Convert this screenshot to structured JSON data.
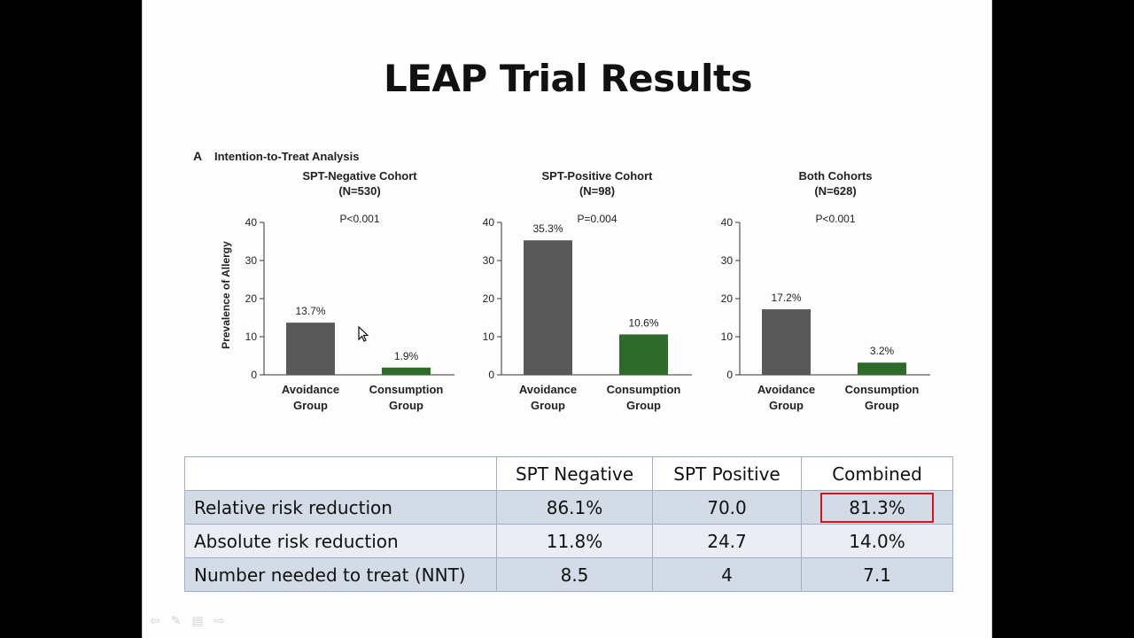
{
  "slide": {
    "title": "LEAP Trial Results"
  },
  "figure": {
    "panel_label": "A",
    "panel_title": "Intention-to-Treat Analysis",
    "ylabel": "Prevalence of Allergy"
  },
  "chart_data": [
    {
      "type": "bar",
      "title": "SPT-Negative Cohort",
      "subtitle": "(N=530)",
      "pvalue": "P<0.001",
      "categories": [
        "Avoidance Group",
        "Consumption Group"
      ],
      "values": [
        13.7,
        1.9
      ],
      "labels": [
        "13.7%",
        "1.9%"
      ],
      "colors": [
        "#595959",
        "#2e6b2a"
      ],
      "ylim": [
        0,
        40
      ],
      "yticks": [
        0,
        10,
        20,
        30,
        40
      ],
      "ylabel": "Prevalence of Allergy"
    },
    {
      "type": "bar",
      "title": "SPT-Positive Cohort",
      "subtitle": "(N=98)",
      "pvalue": "P=0.004",
      "categories": [
        "Avoidance Group",
        "Consumption Group"
      ],
      "values": [
        35.3,
        10.6
      ],
      "labels": [
        "35.3%",
        "10.6%"
      ],
      "colors": [
        "#595959",
        "#2e6b2a"
      ],
      "ylim": [
        0,
        40
      ],
      "yticks": [
        0,
        10,
        20,
        30,
        40
      ]
    },
    {
      "type": "bar",
      "title": "Both Cohorts",
      "subtitle": "(N=628)",
      "pvalue": "P<0.001",
      "categories": [
        "Avoidance Group",
        "Consumption Group"
      ],
      "values": [
        17.2,
        3.2
      ],
      "labels": [
        "17.2%",
        "3.2%"
      ],
      "colors": [
        "#595959",
        "#2e6b2a"
      ],
      "ylim": [
        0,
        40
      ],
      "yticks": [
        0,
        10,
        20,
        30,
        40
      ]
    }
  ],
  "table": {
    "headers": [
      "",
      "SPT Negative",
      "SPT Positive",
      "Combined"
    ],
    "rows": [
      {
        "label": "Relative risk reduction",
        "values": [
          "86.1%",
          "70.0",
          "81.3%"
        ]
      },
      {
        "label": "Absolute risk reduction",
        "values": [
          "11.8%",
          "24.7",
          "14.0%"
        ]
      },
      {
        "label": "Number needed to treat (NNT)",
        "values": [
          "8.5",
          "4",
          "7.1"
        ]
      }
    ],
    "highlight_color": "#d8121b"
  }
}
